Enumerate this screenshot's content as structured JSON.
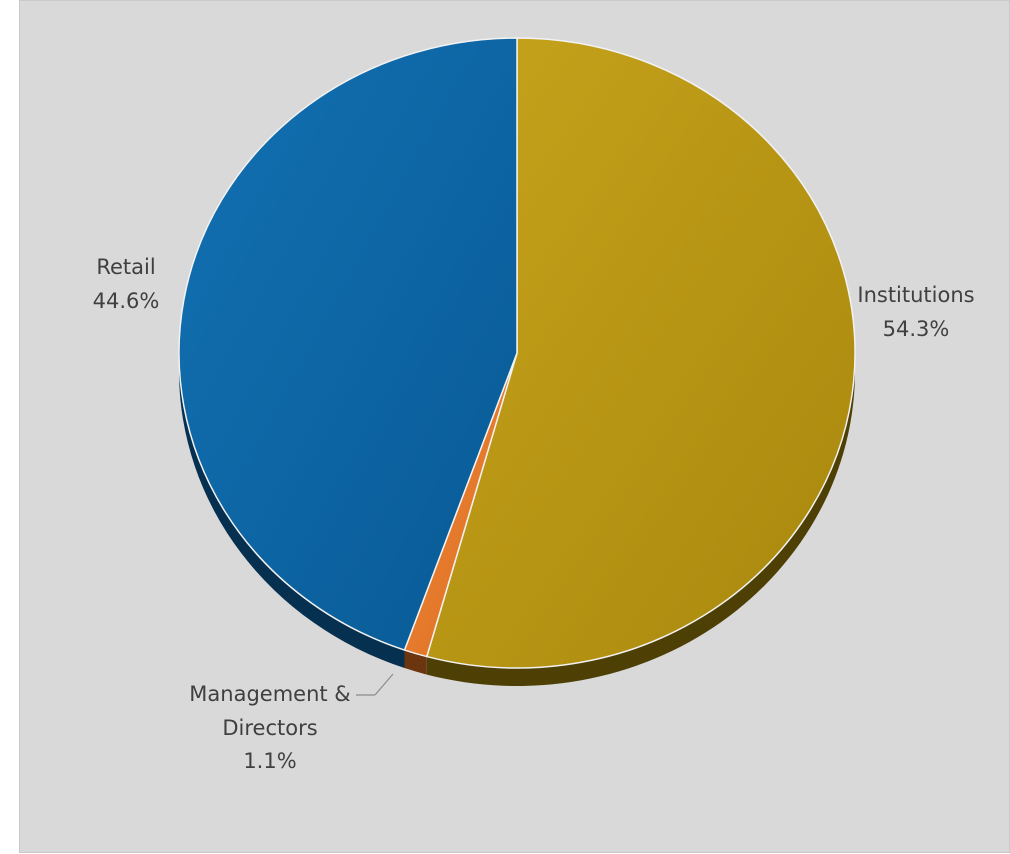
{
  "chart_data": {
    "type": "pie",
    "slices": [
      {
        "name": "Institutions",
        "value": 54.3,
        "label_name": "Institutions",
        "label_value": "54.3%",
        "color": "#bd9a14"
      },
      {
        "name": "Management & Directors",
        "value": 1.1,
        "label_name_lines": [
          "Management &",
          "Directors"
        ],
        "label_value": "1.1%",
        "color": "#ef7d2c"
      },
      {
        "name": "Retail",
        "value": 44.6,
        "label_name": "Retail",
        "label_value": "44.6%",
        "color": "#0d67a6"
      }
    ],
    "start_angle": "12 o'clock",
    "direction": "clockwise",
    "legend": "none",
    "background_color": "#d9d9d9"
  }
}
